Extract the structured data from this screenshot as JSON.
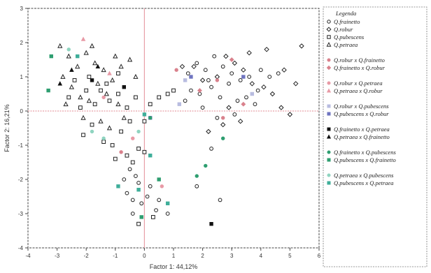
{
  "chart_data": {
    "type": "scatter",
    "xlabel": "Factor 1: 44,12%",
    "ylabel": "Factor 2: 16,21%",
    "xlim": [
      -4,
      6
    ],
    "ylim": [
      -4,
      3
    ],
    "xticks": [
      -4,
      -3,
      -2,
      -1,
      0,
      1,
      2,
      3,
      4,
      5,
      6
    ],
    "yticks": [
      -4,
      -3,
      -2,
      -1,
      0,
      1,
      2,
      3
    ],
    "reference_lines": {
      "x": 0,
      "y": 0,
      "color": "#e8a0a8"
    },
    "legend": {
      "title": "Legenda",
      "entries": [
        {
          "label": "Q.frainetto",
          "marker": "circle-open",
          "color": "#222222"
        },
        {
          "label": "Q.robur",
          "marker": "diamond-open",
          "color": "#222222"
        },
        {
          "label": "Q.pubescens",
          "marker": "square-open",
          "color": "#222222"
        },
        {
          "label": "Q.petraea",
          "marker": "triangle-open",
          "color": "#222222"
        },
        {
          "label": "Q.robur x Q.frainetto",
          "marker": "circle",
          "color": "#d9818c"
        },
        {
          "label": "Q.frainetto x Q.robur",
          "marker": "diamond",
          "color": "#d9818c"
        },
        {
          "label": "Q.robur x Q.petraea",
          "marker": "circle",
          "color": "#e89aa6"
        },
        {
          "label": "Q.petraea x Q.robur",
          "marker": "triangle",
          "color": "#e89aa6"
        },
        {
          "label": "Q.robur x Q.pubescens",
          "marker": "square",
          "color": "#b8bce0"
        },
        {
          "label": "Q.pubescens x Q.robur",
          "marker": "square",
          "color": "#6f74c0"
        },
        {
          "label": "Q.frainetto x Q.petraea",
          "marker": "square",
          "color": "#111111"
        },
        {
          "label": "Q.petraea x Q.frainetto",
          "marker": "triangle",
          "color": "#111111"
        },
        {
          "label": "Q.frainetto x Q.pubescens",
          "marker": "circle",
          "color": "#2e9e70"
        },
        {
          "label": "Q.pubescens x Q.frainetto",
          "marker": "square",
          "color": "#2e9e70"
        },
        {
          "label": "Q.petraea x Q.pubescens",
          "marker": "circle",
          "color": "#8fd4c0"
        },
        {
          "label": "Q.pubescens x Q.petraea",
          "marker": "square",
          "color": "#3fae9a"
        }
      ]
    },
    "series": [
      {
        "name": "Q.frainetto",
        "marker": "circle-open",
        "color": "#222222",
        "points": [
          [
            1.5,
            1.1
          ],
          [
            1.8,
            1.4
          ],
          [
            2.1,
            1.2
          ],
          [
            2.4,
            1.6
          ],
          [
            2.7,
            1.3
          ],
          [
            3.0,
            1.1
          ],
          [
            3.3,
            0.9
          ],
          [
            3.6,
            1.0
          ],
          [
            4.0,
            1.2
          ],
          [
            4.3,
            1.0
          ],
          [
            1.6,
            0.6
          ],
          [
            1.9,
            0.5
          ],
          [
            2.3,
            0.7
          ],
          [
            2.6,
            0.4
          ],
          [
            2.9,
            0.8
          ],
          [
            3.2,
            0.3
          ],
          [
            3.5,
            0.4
          ],
          [
            3.9,
            0.6
          ],
          [
            4.6,
            1.1
          ],
          [
            2.0,
            0.1
          ],
          [
            2.5,
            -0.2
          ],
          [
            3.1,
            -0.1
          ],
          [
            3.8,
            0.2
          ],
          [
            2.2,
            0.9
          ],
          [
            1.4,
            0.3
          ],
          [
            -0.5,
            -1.7
          ],
          [
            -0.2,
            -2.1
          ],
          [
            -0.6,
            -2.4
          ],
          [
            -0.1,
            -2.7
          ],
          [
            -0.4,
            -3.0
          ],
          [
            0.1,
            -2.5
          ],
          [
            -0.3,
            -1.9
          ],
          [
            0.2,
            -2.2
          ],
          [
            -0.7,
            -2.0
          ],
          [
            0.4,
            -2.9
          ],
          [
            0.8,
            -3.0
          ],
          [
            0.5,
            -2.6
          ],
          [
            -0.4,
            -2.6
          ],
          [
            2.3,
            -1.1
          ],
          [
            1.8,
            -2.2
          ],
          [
            2.6,
            -2.6
          ]
        ]
      },
      {
        "name": "Q.robur",
        "marker": "diamond-open",
        "color": "#222222",
        "points": [
          [
            1.7,
            1.3
          ],
          [
            2.0,
            0.9
          ],
          [
            2.5,
            1.0
          ],
          [
            2.8,
            1.6
          ],
          [
            3.1,
            1.4
          ],
          [
            3.4,
            1.2
          ],
          [
            3.7,
            0.8
          ],
          [
            4.1,
            0.7
          ],
          [
            4.4,
            0.5
          ],
          [
            4.8,
            1.2
          ],
          [
            5.2,
            0.8
          ],
          [
            1.3,
            1.3
          ],
          [
            2.9,
            0.1
          ],
          [
            3.3,
            -0.3
          ],
          [
            2.2,
            -0.6
          ],
          [
            3.6,
            1.7
          ],
          [
            4.2,
            1.8
          ],
          [
            5.4,
            1.9
          ],
          [
            2.7,
            -0.4
          ],
          [
            4.7,
            0.1
          ],
          [
            5.0,
            -0.1
          ]
        ]
      },
      {
        "name": "Q.pubescens",
        "marker": "square-open",
        "color": "#222222",
        "points": [
          [
            -2.4,
            0.9
          ],
          [
            -2.0,
            0.6
          ],
          [
            -1.7,
            0.2
          ],
          [
            -2.2,
            0.1
          ],
          [
            -1.5,
            0.6
          ],
          [
            -1.2,
            0.3
          ],
          [
            -0.9,
            0.5
          ],
          [
            -0.6,
            0.1
          ],
          [
            -0.3,
            0.4
          ],
          [
            0.2,
            0.2
          ],
          [
            0.5,
            0.4
          ],
          [
            0.8,
            0.5
          ],
          [
            1.0,
            0.6
          ],
          [
            0.0,
            -0.3
          ],
          [
            -1.8,
            -0.4
          ],
          [
            -2.1,
            -0.7
          ],
          [
            -1.4,
            -0.9
          ],
          [
            -1.1,
            -1.0
          ],
          [
            -0.8,
            -0.6
          ],
          [
            -0.5,
            -0.3
          ],
          [
            -2.6,
            0.4
          ],
          [
            -1.9,
            1.0
          ],
          [
            -1.3,
            0.8
          ],
          [
            -0.9,
            1.1
          ],
          [
            -0.2,
            -1.1
          ],
          [
            -0.4,
            -1.5
          ],
          [
            -0.6,
            -1.3
          ],
          [
            0.0,
            -1.2
          ],
          [
            -1.0,
            -1.4
          ],
          [
            -0.2,
            -3.3
          ],
          [
            0.3,
            -3.1
          ]
        ]
      },
      {
        "name": "Q.petraea",
        "marker": "triangle-open",
        "color": "#222222",
        "points": [
          [
            -2.9,
            1.9
          ],
          [
            -2.6,
            1.6
          ],
          [
            -2.3,
            1.3
          ],
          [
            -2.0,
            1.7
          ],
          [
            -1.7,
            1.4
          ],
          [
            -1.4,
            1.2
          ],
          [
            -1.1,
            0.9
          ],
          [
            -0.8,
            1.3
          ],
          [
            -0.5,
            1.5
          ],
          [
            -2.8,
            1.0
          ],
          [
            -2.5,
            0.7
          ],
          [
            -2.2,
            0.4
          ],
          [
            -1.9,
            0.3
          ],
          [
            -1.6,
            0.8
          ],
          [
            -1.3,
            0.5
          ],
          [
            -0.9,
            0.2
          ],
          [
            -2.7,
            0.2
          ],
          [
            -2.1,
            -0.2
          ],
          [
            -1.5,
            -0.3
          ],
          [
            -1.2,
            -0.5
          ],
          [
            -0.7,
            -0.2
          ],
          [
            -0.3,
            1.0
          ],
          [
            -1.8,
            1.9
          ],
          [
            -1.0,
            1.6
          ]
        ]
      },
      {
        "name": "Q.robur x Q.frainetto",
        "marker": "circle",
        "color": "#d9818c",
        "points": [
          [
            1.1,
            1.2
          ],
          [
            2.5,
            0.9
          ],
          [
            2.7,
            -0.2
          ],
          [
            -0.8,
            -1.2
          ]
        ]
      },
      {
        "name": "Q.frainetto x Q.robur",
        "marker": "diamond",
        "color": "#d9818c",
        "points": [
          [
            1.9,
            0.6
          ],
          [
            3.0,
            1.5
          ],
          [
            3.4,
            0.2
          ]
        ]
      },
      {
        "name": "Q.robur x Q.petraea",
        "marker": "circle",
        "color": "#e89aa6",
        "points": [
          [
            -0.4,
            -0.8
          ],
          [
            0.6,
            -2.2
          ],
          [
            -1.4,
            0.4
          ]
        ]
      },
      {
        "name": "Q.petraea x Q.robur",
        "marker": "triangle",
        "color": "#e89aa6",
        "points": [
          [
            -2.1,
            2.1
          ],
          [
            -1.2,
            1.1
          ]
        ]
      },
      {
        "name": "Q.robur x Q.pubescens",
        "marker": "square",
        "color": "#b8bce0",
        "points": [
          [
            1.4,
            0.9
          ],
          [
            1.2,
            0.2
          ],
          [
            3.7,
            0.5
          ]
        ]
      },
      {
        "name": "Q.pubescens x Q.robur",
        "marker": "square",
        "color": "#6f74c0",
        "points": [
          [
            0.2,
            -0.2
          ],
          [
            3.4,
            1.0
          ],
          [
            1.6,
            1.0
          ]
        ]
      },
      {
        "name": "Q.frainetto x Q.petraea",
        "marker": "square",
        "color": "#111111",
        "points": [
          [
            -1.8,
            0.9
          ],
          [
            -0.7,
            0.7
          ],
          [
            2.3,
            -3.3
          ]
        ]
      },
      {
        "name": "Q.petraea x Q.frainetto",
        "marker": "triangle",
        "color": "#111111",
        "points": [
          [
            -2.5,
            1.2
          ],
          [
            -1.6,
            1.3
          ],
          [
            -2.9,
            0.8
          ]
        ]
      },
      {
        "name": "Q.frainetto x Q.pubescens",
        "marker": "circle",
        "color": "#2e9e70",
        "points": [
          [
            2.7,
            -0.8
          ],
          [
            2.1,
            -1.6
          ],
          [
            1.8,
            -1.9
          ],
          [
            0.2,
            -0.2
          ]
        ]
      },
      {
        "name": "Q.pubescens x Q.frainetto",
        "marker": "square",
        "color": "#2e9e70",
        "points": [
          [
            -3.2,
            1.6
          ],
          [
            -3.3,
            0.6
          ],
          [
            -0.1,
            -3.1
          ],
          [
            0.5,
            -2.0
          ]
        ]
      },
      {
        "name": "Q.petraea x Q.pubescens",
        "marker": "circle",
        "color": "#8fd4c0",
        "points": [
          [
            -2.6,
            1.8
          ],
          [
            -1.4,
            -0.8
          ],
          [
            -1.8,
            -0.6
          ],
          [
            -0.2,
            -0.6
          ]
        ]
      },
      {
        "name": "Q.pubescens x Q.petraea",
        "marker": "square",
        "color": "#3fae9a",
        "points": [
          [
            -2.3,
            1.6
          ],
          [
            0.0,
            -0.1
          ],
          [
            -0.9,
            -2.2
          ],
          [
            0.8,
            -2.7
          ],
          [
            0.2,
            -1.3
          ],
          [
            -0.2,
            -2.3
          ]
        ]
      }
    ]
  }
}
